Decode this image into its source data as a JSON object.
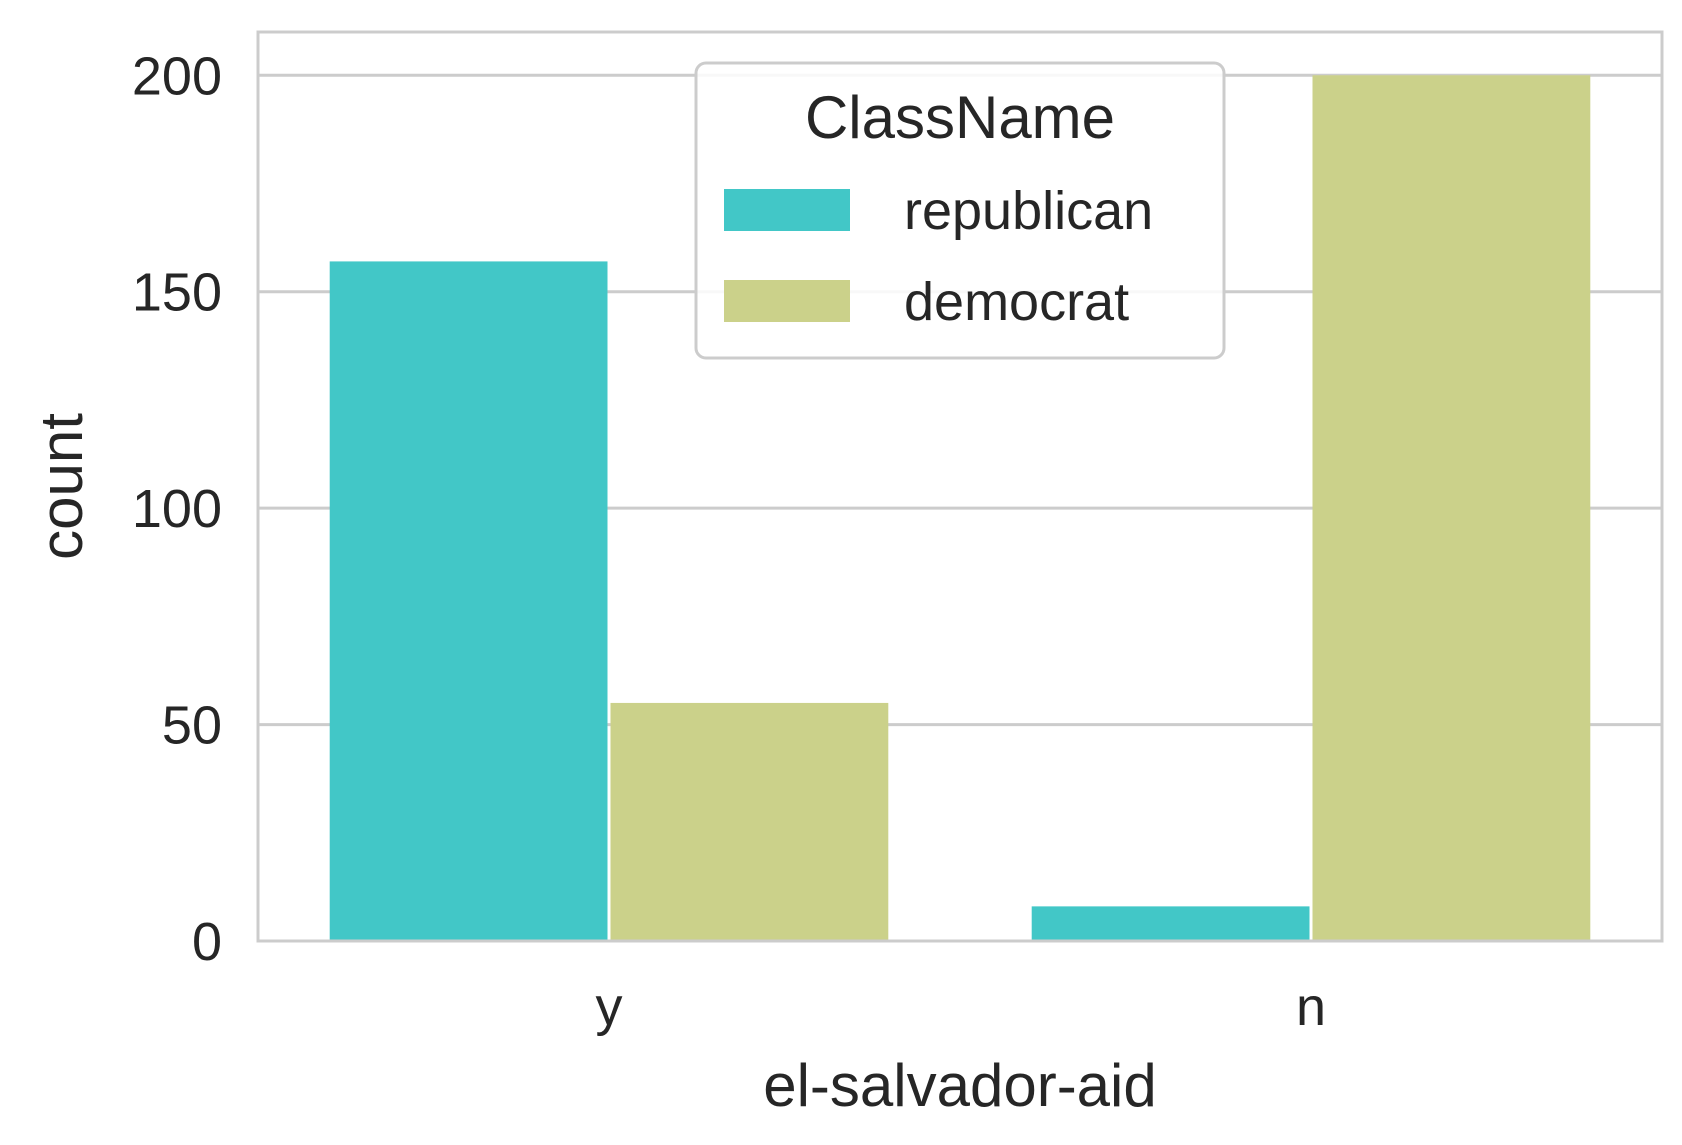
{
  "chart_data": {
    "type": "bar",
    "categories": [
      "y",
      "n"
    ],
    "series": [
      {
        "name": "republican",
        "values": [
          157,
          8
        ],
        "color": "#42c7c7"
      },
      {
        "name": "democrat",
        "values": [
          55,
          200
        ],
        "color": "#cbd18a"
      }
    ],
    "xlabel": "el-salvador-aid",
    "ylabel": "count",
    "ylim": [
      0,
      210
    ],
    "yticks": [
      0,
      50,
      100,
      150,
      200
    ],
    "grid": true,
    "legend": {
      "title": "ClassName",
      "placement": "top-center"
    }
  }
}
